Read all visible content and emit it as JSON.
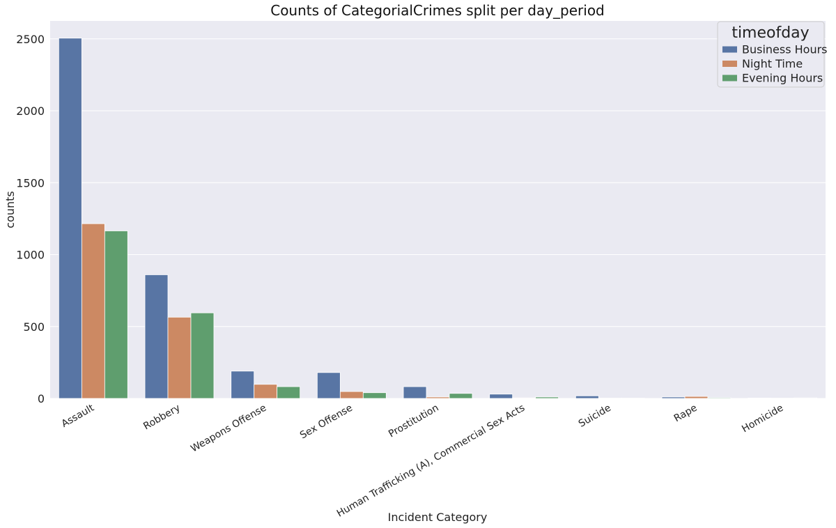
{
  "chart_data": {
    "type": "bar",
    "title": "Counts of CategorialCrimes split per day_period",
    "xlabel": "Incident Category",
    "ylabel": "counts",
    "ylim": [
      0,
      2625
    ],
    "yticks": [
      0,
      500,
      1000,
      1500,
      2000,
      2500
    ],
    "grid": true,
    "legend": {
      "title": "timeofday",
      "placement": "top-right"
    },
    "categories": [
      "Assault",
      "Robbery",
      "Weapons Offense",
      "Sex Offense",
      "Prostitution",
      "Human Trafficking (A), Commercial Sex Acts",
      "Suicide",
      "Rape",
      "Homicide"
    ],
    "series": [
      {
        "name": "Business Hours",
        "color": "#5875a4",
        "values": [
          2505,
          860,
          190,
          180,
          82,
          30,
          18,
          10,
          3
        ]
      },
      {
        "name": "Night Time",
        "color": "#cc8963",
        "values": [
          1215,
          565,
          98,
          48,
          10,
          4,
          2,
          14,
          2
        ]
      },
      {
        "name": "Evening Hours",
        "color": "#5f9e6e",
        "values": [
          1165,
          595,
          82,
          40,
          35,
          10,
          2,
          5,
          4
        ]
      }
    ]
  },
  "colors": {
    "plot_background": "#eaeaf2",
    "grid": "#ffffff"
  }
}
